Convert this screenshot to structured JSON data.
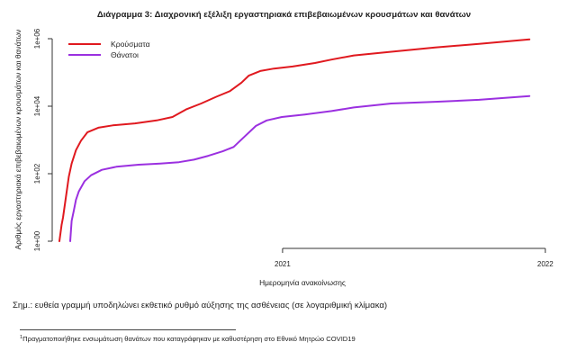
{
  "chart_data": {
    "type": "line",
    "title": "Διάγραμμα 3: Διαχρονική εξέλιξη εργαστηριακά επιβεβαιωμένων κρουσμάτων και θανάτων",
    "xlabel": "Ημερομηνία ανακοίνωσης",
    "ylabel": "Αριθμός εργαστηριακά επιβεβαιωμένων κρουσμάτων και θανάτων",
    "y_scale": "log",
    "ylim": [
      1,
      1000000
    ],
    "yticks": [
      {
        "value": 1,
        "label": "1e+00"
      },
      {
        "value": 100,
        "label": "1e+02"
      },
      {
        "value": 10000,
        "label": "1e+04"
      },
      {
        "value": 1000000,
        "label": "1e+06"
      }
    ],
    "xlim": [
      "2020-02-26",
      "2022-01-10"
    ],
    "xticks": [
      {
        "value": "2021-01-01",
        "label": "2021"
      },
      {
        "value": "2022-01-01",
        "label": "2022"
      }
    ],
    "legend_position": "top-left",
    "grid": false,
    "series": [
      {
        "name": "Κρούσματα",
        "color": "#e0191f",
        "points": [
          [
            "2020-02-26",
            1
          ],
          [
            "2020-02-29",
            3
          ],
          [
            "2020-03-02",
            5
          ],
          [
            "2020-03-06",
            20
          ],
          [
            "2020-03-10",
            80
          ],
          [
            "2020-03-14",
            200
          ],
          [
            "2020-03-20",
            500
          ],
          [
            "2020-03-27",
            950
          ],
          [
            "2020-04-05",
            1700
          ],
          [
            "2020-04-20",
            2300
          ],
          [
            "2020-05-10",
            2700
          ],
          [
            "2020-06-10",
            3100
          ],
          [
            "2020-07-10",
            3800
          ],
          [
            "2020-08-01",
            4800
          ],
          [
            "2020-08-20",
            8000
          ],
          [
            "2020-09-10",
            12000
          ],
          [
            "2020-10-01",
            19000
          ],
          [
            "2020-10-20",
            28000
          ],
          [
            "2020-11-05",
            50000
          ],
          [
            "2020-11-15",
            80000
          ],
          [
            "2020-12-01",
            110000
          ],
          [
            "2020-12-20",
            130000
          ],
          [
            "2021-01-15",
            150000
          ],
          [
            "2021-02-15",
            190000
          ],
          [
            "2021-03-10",
            240000
          ],
          [
            "2021-04-10",
            320000
          ],
          [
            "2021-06-01",
            410000
          ],
          [
            "2021-08-01",
            550000
          ],
          [
            "2021-10-01",
            700000
          ],
          [
            "2021-12-10",
            950000
          ]
        ]
      },
      {
        "name": "Θάνατοι",
        "color": "#9b30e0",
        "points": [
          [
            "2020-03-12",
            1
          ],
          [
            "2020-03-14",
            4
          ],
          [
            "2020-03-17",
            8
          ],
          [
            "2020-03-20",
            17
          ],
          [
            "2020-03-24",
            30
          ],
          [
            "2020-04-01",
            60
          ],
          [
            "2020-04-10",
            90
          ],
          [
            "2020-04-25",
            130
          ],
          [
            "2020-05-15",
            160
          ],
          [
            "2020-06-15",
            185
          ],
          [
            "2020-07-15",
            200
          ],
          [
            "2020-08-10",
            220
          ],
          [
            "2020-08-31",
            260
          ],
          [
            "2020-09-20",
            340
          ],
          [
            "2020-10-10",
            460
          ],
          [
            "2020-10-25",
            620
          ],
          [
            "2020-11-10",
            1300
          ],
          [
            "2020-11-25",
            2600
          ],
          [
            "2020-12-10",
            3800
          ],
          [
            "2020-12-31",
            4800
          ],
          [
            "2021-02-01",
            5700
          ],
          [
            "2021-03-10",
            7200
          ],
          [
            "2021-04-10",
            9200
          ],
          [
            "2021-06-01",
            12000
          ],
          [
            "2021-08-01",
            13500
          ],
          [
            "2021-10-01",
            15500
          ],
          [
            "2021-12-10",
            20000
          ]
        ]
      }
    ]
  },
  "note": "Σημ.: ευθεία γραμμή υποδηλώνει εκθετικό ρυθμό αύξησης της ασθένειας (σε λογαριθμική κλίμακα)",
  "footnote": {
    "marker": "1",
    "text": "Πραγματοποιήθηκε ενσωμάτωση θανάτων που καταγράφηκαν με καθυστέρηση στο Εθνικό Μητρώο COVID19"
  }
}
